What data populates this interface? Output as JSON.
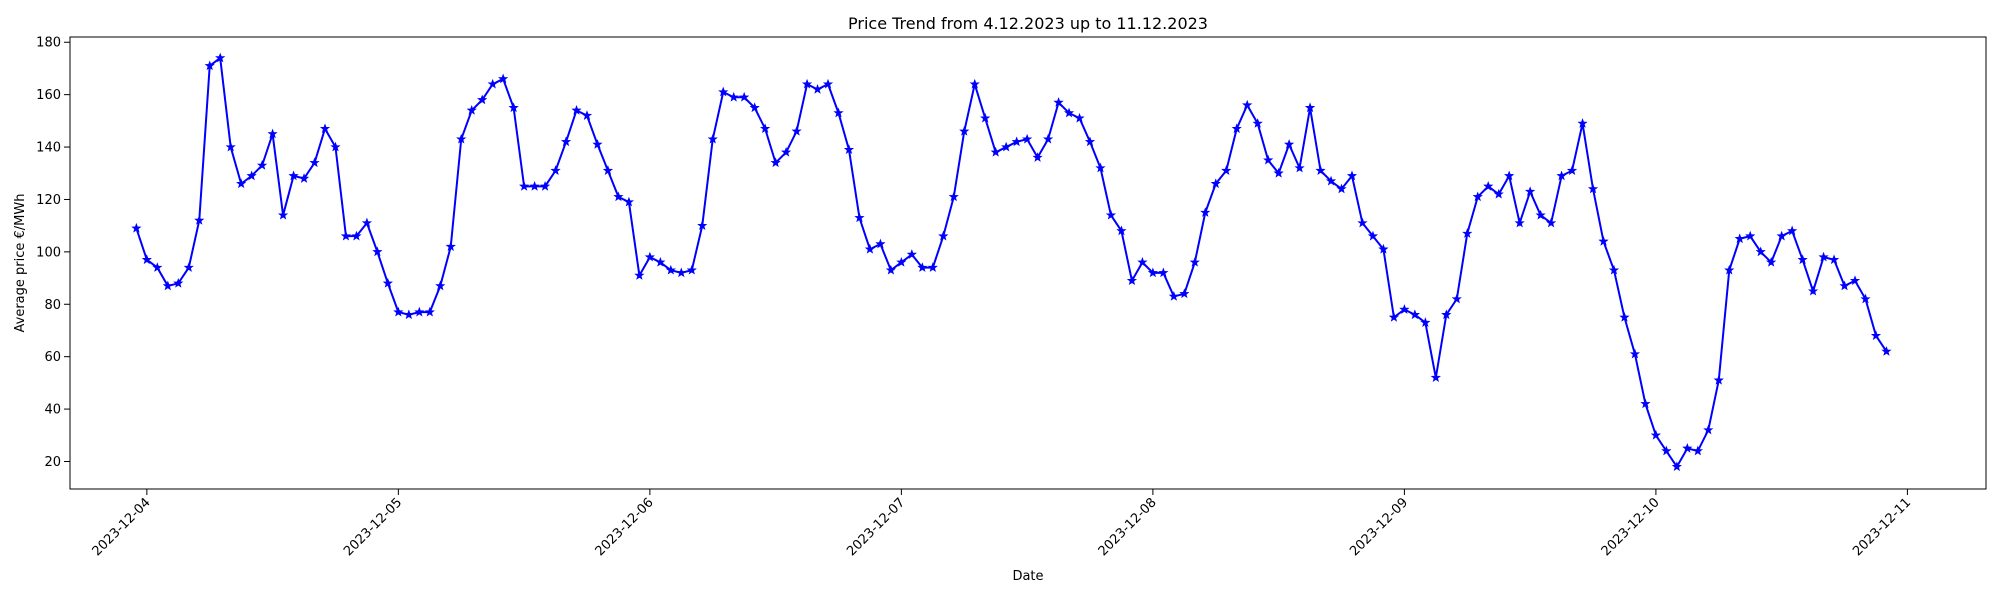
{
  "chart_data": {
    "type": "line",
    "title": "Price Trend from 4.12.2023 up to 11.12.2023",
    "xlabel": "Date",
    "ylabel": "Average price €/MWh",
    "x_ticks": [
      "2023-12-04",
      "2023-12-05",
      "2023-12-06",
      "2023-12-07",
      "2023-12-08",
      "2023-12-09",
      "2023-12-10",
      "2023-12-11"
    ],
    "y_ticks": [
      20,
      40,
      60,
      80,
      100,
      120,
      140,
      160,
      180
    ],
    "ylim": [
      9.5,
      182
    ],
    "xlim": [
      "2023-12-03 16:40",
      "2023-12-11 07:30"
    ],
    "x_start": "2023-12-03 23:00",
    "x_step_hours": 1,
    "grid": false,
    "line_color": "#0000ff",
    "marker": "star",
    "series": [
      {
        "values": [
          109,
          97,
          94,
          87,
          88,
          94,
          112,
          171,
          174,
          140,
          126,
          129,
          133,
          145,
          114,
          129,
          128,
          134,
          147,
          140,
          106,
          106,
          111,
          100,
          88,
          77,
          76,
          77,
          77,
          87,
          102,
          143,
          154,
          158,
          164,
          166,
          155,
          125,
          125,
          125,
          131,
          142,
          154,
          152,
          141,
          131,
          121,
          119,
          91,
          98,
          96,
          93,
          92,
          93,
          110,
          143,
          161,
          159,
          159,
          155,
          147,
          134,
          138,
          146,
          164,
          162,
          164,
          153,
          139,
          113,
          101,
          103,
          93,
          96,
          99,
          94,
          94,
          106,
          121,
          146,
          164,
          151,
          138,
          140,
          142,
          143,
          136,
          143,
          157,
          153,
          151,
          142,
          132,
          114,
          108,
          89,
          96,
          92,
          92,
          83,
          84,
          96,
          115,
          126,
          131,
          147,
          156,
          149,
          135,
          130,
          141,
          132,
          155,
          131,
          127,
          124,
          129,
          111,
          106,
          101,
          75,
          78,
          76,
          73,
          52,
          76,
          82,
          107,
          121,
          125,
          122,
          129,
          111,
          123,
          114,
          111,
          129,
          131,
          149,
          124,
          104,
          93,
          75,
          61,
          42,
          30,
          24,
          18,
          25,
          24,
          32,
          51,
          93,
          105,
          106,
          100,
          96,
          106,
          108,
          97,
          85,
          98,
          97,
          87,
          89,
          82,
          68,
          62
        ]
      }
    ]
  }
}
